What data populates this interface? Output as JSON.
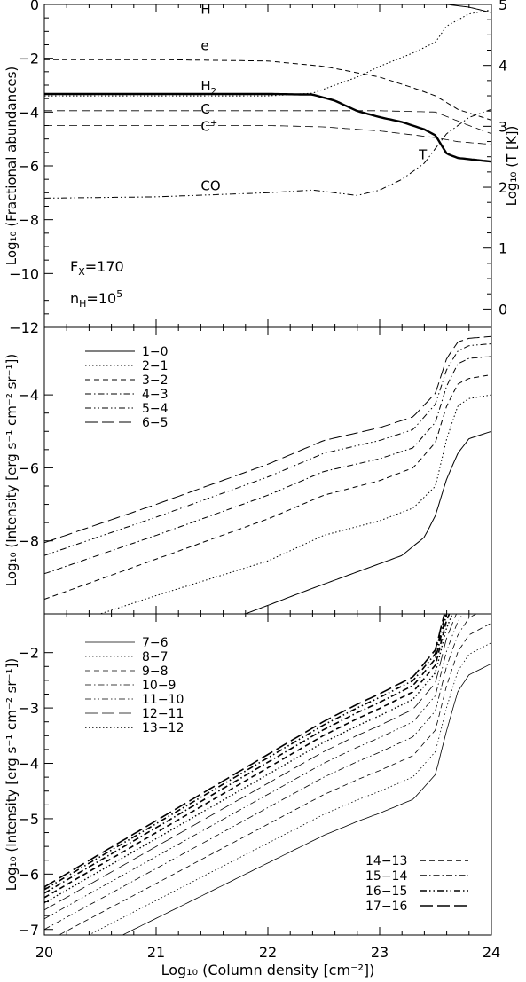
{
  "figure": {
    "xlabel": "Log₁₀ (Column density [cm⁻²])",
    "x_ticklabels": [
      "20",
      "21",
      "22",
      "23",
      "24"
    ]
  },
  "chart_data": [
    {
      "type": "line",
      "panel": "abundances",
      "xlim": [
        20,
        24
      ],
      "ylim": [
        -12,
        0
      ],
      "y2lim": [
        -0.3,
        5
      ],
      "ylabel": "Log₁₀ (Fractional abundances)",
      "y2label": "Log₁₀ (T [K])",
      "y_ticklabels": [
        "0",
        "−2",
        "−4",
        "−6",
        "−8",
        "−10",
        "−12"
      ],
      "y2_ticklabels": [
        "5",
        "4",
        "3",
        "2",
        "1",
        "0"
      ],
      "annotations": [
        "F",
        "X",
        "=170",
        "n",
        "H",
        "=10",
        "5"
      ],
      "series": [
        {
          "name": "H",
          "label_sub": "",
          "label_sup": "",
          "label_at": [
            21.4,
            -0.35
          ],
          "style": "solid",
          "width": 1,
          "x": [
            20,
            23.0,
            23.3,
            23.6,
            23.8,
            24.0
          ],
          "y": [
            0,
            0,
            0,
            0,
            -0.1,
            -0.3
          ]
        },
        {
          "name": "e",
          "label_sub": "",
          "label_sup": "",
          "label_at": [
            21.4,
            -1.7
          ],
          "style": "dashed",
          "width": 1,
          "x": [
            20,
            21.0,
            22.0,
            22.5,
            23.0,
            23.3,
            23.5,
            23.7,
            24.0
          ],
          "y": [
            -2.05,
            -2.05,
            -2.1,
            -2.3,
            -2.7,
            -3.1,
            -3.4,
            -3.9,
            -4.3
          ]
        },
        {
          "name": "H",
          "label_sub": "2",
          "label_sup": "",
          "label_at": [
            21.4,
            -3.2
          ],
          "style": "dotted",
          "width": 1,
          "x": [
            20,
            21.0,
            22.0,
            22.4,
            22.8,
            23.0,
            23.3,
            23.5,
            23.6,
            23.8,
            24.0
          ],
          "y": [
            -3.4,
            -3.4,
            -3.4,
            -3.3,
            -2.7,
            -2.3,
            -1.8,
            -1.4,
            -0.8,
            -0.35,
            -0.2
          ]
        },
        {
          "name": "C",
          "label_sub": "",
          "label_sup": "",
          "label_at": [
            21.4,
            -4.05
          ],
          "style": "dashed-long",
          "width": 0.8,
          "x": [
            20,
            21.0,
            22.0,
            23.0,
            23.5,
            23.8,
            24.0
          ],
          "y": [
            -3.95,
            -3.95,
            -3.95,
            -3.95,
            -4.0,
            -4.5,
            -4.8
          ]
        },
        {
          "name": "C",
          "label_sub": "",
          "label_sup": "+",
          "label_at": [
            21.4,
            -4.7
          ],
          "style": "dashed-long",
          "width": 0.8,
          "x": [
            20,
            21.0,
            22.0,
            22.5,
            23.0,
            23.5,
            23.7,
            24.0
          ],
          "y": [
            -4.5,
            -4.5,
            -4.5,
            -4.55,
            -4.7,
            -4.95,
            -5.1,
            -5.2
          ]
        },
        {
          "name": "T",
          "label_sub": "",
          "label_sup": "",
          "label_at": [
            23.35,
            -5.75
          ],
          "axis": "right",
          "style": "solid",
          "width": 2.4,
          "x": [
            20,
            21.0,
            22.0,
            22.4,
            22.6,
            22.8,
            23.0,
            23.2,
            23.4,
            23.5,
            23.55,
            23.6,
            23.7,
            24.0
          ],
          "y": [
            3.53,
            3.53,
            3.53,
            3.52,
            3.42,
            3.25,
            3.15,
            3.07,
            2.95,
            2.85,
            2.7,
            2.55,
            2.48,
            2.42
          ]
        },
        {
          "name": "CO",
          "label_sub": "",
          "label_sup": "",
          "label_at": [
            21.4,
            -6.9
          ],
          "style": "dash-dot-dot",
          "width": 1,
          "x": [
            20,
            21.0,
            22.0,
            22.4,
            22.6,
            22.8,
            23.0,
            23.2,
            23.4,
            23.6,
            23.8,
            24.0
          ],
          "y": [
            -7.2,
            -7.15,
            -7.0,
            -6.9,
            -7.0,
            -7.1,
            -6.9,
            -6.5,
            -5.9,
            -4.8,
            -4.2,
            -3.9
          ]
        }
      ]
    },
    {
      "type": "line",
      "panel": "intensity-low-j",
      "xlim": [
        20,
        24
      ],
      "ylim": [
        -10,
        -2.15
      ],
      "ylabel": "Log₁₀ (Intensity [erg s⁻¹ cm⁻² sr⁻¹])",
      "y_ticklabels": [
        "−4",
        "−6",
        "−8"
      ],
      "series": [
        {
          "name": "1−0",
          "style": "solid",
          "x": [
            21.8,
            22.4,
            22.8,
            23.2,
            23.4,
            23.5,
            23.6,
            23.7,
            23.8,
            24.0
          ],
          "y": [
            -10.0,
            -9.3,
            -8.85,
            -8.4,
            -7.9,
            -7.3,
            -6.3,
            -5.6,
            -5.2,
            -5.0
          ]
        },
        {
          "name": "2−1",
          "style": "dotted",
          "x": [
            20.5,
            21.0,
            22.0,
            22.5,
            23.0,
            23.3,
            23.5,
            23.6,
            23.7,
            23.8,
            24.0
          ],
          "y": [
            -10.0,
            -9.5,
            -8.55,
            -7.85,
            -7.45,
            -7.1,
            -6.5,
            -5.2,
            -4.3,
            -4.1,
            -4.0
          ]
        },
        {
          "name": "3−2",
          "style": "dashed",
          "x": [
            20.0,
            21.0,
            22.0,
            22.5,
            23.0,
            23.3,
            23.5,
            23.6,
            23.7,
            23.8,
            24.0
          ],
          "y": [
            -9.6,
            -8.5,
            -7.4,
            -6.75,
            -6.35,
            -6.0,
            -5.3,
            -4.3,
            -3.7,
            -3.55,
            -3.45
          ]
        },
        {
          "name": "4−3",
          "style": "dash-dot",
          "x": [
            20.0,
            21.0,
            22.0,
            22.5,
            23.0,
            23.3,
            23.5,
            23.6,
            23.7,
            23.8,
            24.0
          ],
          "y": [
            -8.9,
            -7.85,
            -6.75,
            -6.1,
            -5.75,
            -5.45,
            -4.75,
            -3.75,
            -3.15,
            -3.0,
            -2.95
          ]
        },
        {
          "name": "5−4",
          "style": "dash-dot-dot",
          "x": [
            20.0,
            21.0,
            22.0,
            22.5,
            23.0,
            23.3,
            23.5,
            23.6,
            23.7,
            23.8,
            24.0
          ],
          "y": [
            -8.4,
            -7.35,
            -6.25,
            -5.6,
            -5.25,
            -4.95,
            -4.25,
            -3.3,
            -2.8,
            -2.65,
            -2.6
          ]
        },
        {
          "name": "6−5",
          "style": "long-dash",
          "x": [
            20.0,
            21.0,
            22.0,
            22.5,
            23.0,
            23.3,
            23.5,
            23.6,
            23.7,
            23.8,
            24.0
          ],
          "y": [
            -8.05,
            -7.0,
            -5.9,
            -5.25,
            -4.9,
            -4.6,
            -3.95,
            -3.0,
            -2.55,
            -2.45,
            -2.4
          ]
        }
      ]
    },
    {
      "type": "line",
      "panel": "intensity-high-j",
      "xlim": [
        20,
        24
      ],
      "ylim": [
        -7.1,
        -1.3
      ],
      "ylabel": "Log₁₀ (Intensity [erg s⁻¹ cm⁻² sr⁻¹])",
      "y_ticklabels": [
        "−2",
        "−3",
        "−4",
        "−5",
        "−6",
        "−7"
      ],
      "series": [
        {
          "name": "7−6",
          "legend": "left",
          "style": "solid",
          "width": 0.8,
          "offset": 0.0
        },
        {
          "name": "8−7",
          "legend": "left",
          "style": "dotted",
          "width": 0.8,
          "offset": 0.18
        },
        {
          "name": "9−8",
          "legend": "left",
          "style": "dashed",
          "width": 0.8,
          "offset": 0.35
        },
        {
          "name": "10−9",
          "legend": "left",
          "style": "dash-dot",
          "width": 0.8,
          "offset": 0.5
        },
        {
          "name": "11−10",
          "legend": "left",
          "style": "dash-dot-dot",
          "width": 0.8,
          "offset": 0.62
        },
        {
          "name": "12−11",
          "legend": "left",
          "style": "long-dash",
          "width": 0.8,
          "offset": 0.72
        },
        {
          "name": "13−12",
          "legend": "left",
          "style": "dotted",
          "width": 1.4,
          "offset": 0.8
        },
        {
          "name": "14−13",
          "legend": "right",
          "style": "dashed",
          "width": 1.6,
          "offset": 0.86
        },
        {
          "name": "15−14",
          "legend": "right",
          "style": "dash-dot",
          "width": 1.6,
          "offset": 0.91
        },
        {
          "name": "16−15",
          "legend": "right",
          "style": "dash-dot-dot",
          "width": 1.6,
          "offset": 0.95
        },
        {
          "name": "17−16",
          "legend": "right",
          "style": "long-dash",
          "width": 1.6,
          "offset": 0.98
        }
      ],
      "base_curve": {
        "x": [
          20.0,
          20.5,
          21.0,
          21.5,
          22.0,
          22.5,
          22.8,
          23.0,
          23.3,
          23.5,
          23.6,
          23.7,
          23.8,
          24.0
        ],
        "y": [
          -7.8,
          -7.3,
          -6.8,
          -6.3,
          -5.8,
          -5.3,
          -5.05,
          -4.9,
          -4.65,
          -4.2,
          -3.4,
          -2.7,
          -2.4,
          -2.2
        ]
      }
    }
  ]
}
